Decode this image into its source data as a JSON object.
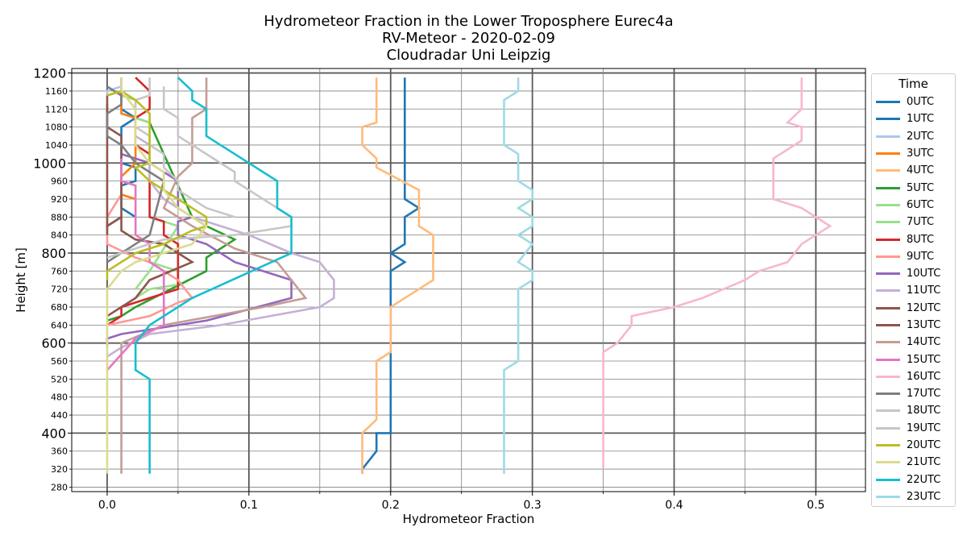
{
  "chart_data": {
    "type": "line",
    "title": [
      "Hydrometeor Fraction in the Lower Troposphere Eurec4a",
      "RV-Meteor - 2020-02-09",
      "Cloudradar Uni Leipzig"
    ],
    "xlabel": "Hydrometeor Fraction",
    "ylabel": "Height [m]",
    "xlim": [
      -0.025,
      0.535
    ],
    "ylim": [
      270,
      1210
    ],
    "x_ticks": [
      "0.0",
      "0.1",
      "0.2",
      "0.3",
      "0.4",
      "0.5"
    ],
    "y_major_ticks": [
      "1200",
      "1000",
      "800",
      "600",
      "400"
    ],
    "y_minor_ticks": [
      "1160",
      "1120",
      "1080",
      "1040",
      "960",
      "920",
      "880",
      "840",
      "760",
      "720",
      "680",
      "640",
      "560",
      "520",
      "480",
      "440",
      "360",
      "320",
      "280"
    ],
    "grid": true,
    "legend_title": "Time",
    "legend_position": "right",
    "series": [
      {
        "name": "0UTC",
        "color": "#1f77b4",
        "x": [
          0.21,
          0.21,
          0.21,
          0.21,
          0.21,
          0.21,
          0.21,
          0.21,
          0.21,
          0.22,
          0.21,
          0.21,
          0.21,
          0.2,
          0.21,
          0.2,
          0.2,
          0.2,
          0.2,
          0.2,
          0.2,
          0.2,
          0.2,
          0.2,
          0.2,
          0.2,
          0.2,
          0.2,
          0.2,
          0.19,
          0.19,
          0.19,
          0.18,
          0.18
        ],
        "y": [
          1190,
          1160,
          1120,
          1080,
          1040,
          1000,
          960,
          940,
          920,
          900,
          880,
          860,
          820,
          800,
          780,
          760,
          740,
          720,
          680,
          640,
          600,
          580,
          560,
          520,
          480,
          470,
          440,
          420,
          400,
          400,
          380,
          360,
          320,
          310
        ]
      },
      {
        "name": "1UTC",
        "color": "#1f77b4",
        "x": [
          0.01,
          0.01,
          0.02,
          0.01,
          0.01,
          0.02,
          0.02,
          0.01,
          0.01,
          0.02
        ],
        "y": [
          1190,
          1120,
          1100,
          1080,
          1000,
          990,
          960,
          950,
          900,
          880
        ]
      },
      {
        "name": "2UTC",
        "color": "#aec7e8",
        "x": [
          0.01,
          0.01,
          0.0,
          0.0
        ],
        "y": [
          1190,
          1170,
          1160,
          1150
        ]
      },
      {
        "name": "3UTC",
        "color": "#ff7f0e",
        "x": [
          0.0,
          0.01,
          0.01,
          0.02,
          0.02,
          0.01,
          0.01,
          0.02
        ],
        "y": [
          1150,
          1160,
          1110,
          1100,
          1000,
          970,
          930,
          920
        ]
      },
      {
        "name": "4UTC",
        "color": "#ffbb78",
        "x": [
          0.19,
          0.19,
          0.19,
          0.19,
          0.18,
          0.18,
          0.19,
          0.19,
          0.22,
          0.22,
          0.23,
          0.23,
          0.2,
          0.2,
          0.2,
          0.19,
          0.19,
          0.19,
          0.18,
          0.18
        ],
        "y": [
          1190,
          1160,
          1120,
          1090,
          1080,
          1040,
          1010,
          990,
          940,
          860,
          840,
          740,
          680,
          600,
          580,
          560,
          480,
          430,
          400,
          310
        ]
      },
      {
        "name": "5UTC",
        "color": "#2ca02c",
        "x": [
          0.02,
          0.02,
          0.03,
          0.06,
          0.07,
          0.09,
          0.07,
          0.07,
          0.02,
          0.01,
          0.0
        ],
        "y": [
          1120,
          1100,
          1090,
          880,
          860,
          830,
          790,
          760,
          680,
          660,
          650
        ]
      },
      {
        "name": "6UTC",
        "color": "#98df8a",
        "x": [
          0.01,
          0.02,
          0.02,
          0.03,
          0.03,
          0.05,
          0.03,
          0.02
        ],
        "y": [
          1150,
          1140,
          1100,
          1090,
          880,
          860,
          760,
          720
        ]
      },
      {
        "name": "7UTC",
        "color": "#98df8a",
        "x": [
          0.03,
          0.03,
          0.05,
          0.05,
          0.03,
          0.02
        ],
        "y": [
          820,
          780,
          760,
          730,
          720,
          700
        ]
      },
      {
        "name": "8UTC",
        "color": "#d62728",
        "x": [
          0.02,
          0.03,
          0.03,
          0.02,
          0.02,
          0.03,
          0.03,
          0.04,
          0.04,
          0.05,
          0.05,
          0.03,
          0.01,
          0.01,
          0.0
        ],
        "y": [
          1190,
          1160,
          1120,
          1100,
          1040,
          1020,
          880,
          870,
          840,
          820,
          720,
          700,
          680,
          660,
          640
        ]
      },
      {
        "name": "9UTC",
        "color": "#ff9896",
        "x": [
          0.01,
          0.01,
          0.0,
          0.0,
          0.02,
          0.03,
          0.04,
          0.05,
          0.06,
          0.05,
          0.03,
          0.0
        ],
        "y": [
          1000,
          930,
          880,
          820,
          790,
          780,
          760,
          740,
          700,
          690,
          660,
          640
        ]
      },
      {
        "name": "10UTC",
        "color": "#9467bd",
        "x": [
          0.01,
          0.03,
          0.05,
          0.05,
          0.06,
          0.05,
          0.05,
          0.07,
          0.09,
          0.13,
          0.13,
          0.07,
          0.01,
          0.0,
          0.0
        ],
        "y": [
          1020,
          1000,
          960,
          900,
          880,
          870,
          840,
          820,
          780,
          740,
          700,
          650,
          620,
          610,
          590
        ]
      },
      {
        "name": "11UTC",
        "color": "#c5b0d5",
        "x": [
          0.02,
          0.03,
          0.03,
          0.04,
          0.06,
          0.1,
          0.13,
          0.15,
          0.16,
          0.16,
          0.15,
          0.08,
          0.03,
          0.01,
          0.0
        ],
        "y": [
          1060,
          1040,
          960,
          920,
          880,
          840,
          800,
          780,
          740,
          700,
          680,
          640,
          620,
          590,
          570
        ]
      },
      {
        "name": "12UTC",
        "color": "#8c564b",
        "x": [
          0.0,
          0.0,
          0.01,
          0.01,
          0.02,
          0.04,
          0.05,
          0.06,
          0.03,
          0.02,
          0.01,
          0.0
        ],
        "y": [
          1150,
          860,
          880,
          850,
          830,
          820,
          800,
          780,
          740,
          700,
          680,
          660
        ]
      },
      {
        "name": "13UTC",
        "color": "#8c564b",
        "x": [
          0.0,
          0.0,
          0.01,
          0.01,
          0.01,
          0.01,
          0.0,
          0.0
        ],
        "y": [
          1130,
          1080,
          1060,
          1020,
          960,
          880,
          860,
          840
        ]
      },
      {
        "name": "14UTC",
        "color": "#c49c94",
        "x": [
          0.07,
          0.07,
          0.06,
          0.06,
          0.06,
          0.05,
          0.04,
          0.06,
          0.09,
          0.12,
          0.14,
          0.11,
          0.04,
          0.01,
          0.01,
          0.01,
          0.01
        ],
        "y": [
          1190,
          1120,
          1100,
          1040,
          1000,
          970,
          900,
          860,
          810,
          780,
          700,
          680,
          640,
          600,
          560,
          320,
          310
        ]
      },
      {
        "name": "15UTC",
        "color": "#e377c2",
        "x": [
          0.01,
          0.01,
          0.02,
          0.02,
          0.02,
          0.03,
          0.03,
          0.04,
          0.04,
          0.04,
          0.02,
          0.0
        ],
        "y": [
          1010,
          960,
          950,
          880,
          840,
          820,
          780,
          760,
          720,
          640,
          610,
          540
        ]
      },
      {
        "name": "16UTC",
        "color": "#f7b6d2",
        "x": [
          0.49,
          0.49,
          0.49,
          0.48,
          0.49,
          0.49,
          0.47,
          0.47,
          0.47,
          0.49,
          0.51,
          0.49,
          0.48,
          0.46,
          0.45,
          0.42,
          0.4,
          0.37,
          0.37,
          0.36,
          0.35,
          0.35,
          0.35
        ],
        "y": [
          1190,
          1160,
          1120,
          1090,
          1080,
          1050,
          1010,
          960,
          920,
          900,
          860,
          820,
          780,
          760,
          740,
          700,
          680,
          660,
          640,
          600,
          580,
          560,
          320
        ]
      },
      {
        "name": "17UTC",
        "color": "#7f7f7f",
        "x": [
          0.0,
          0.01,
          0.01,
          0.0,
          0.0,
          0.0,
          0.01,
          0.02,
          0.03,
          0.04,
          0.03,
          0.0
        ],
        "y": [
          1170,
          1150,
          1130,
          1110,
          1100,
          1060,
          1040,
          1000,
          980,
          960,
          840,
          780
        ]
      },
      {
        "name": "18UTC",
        "color": "#c7c7c7",
        "x": [
          0.04,
          0.04,
          0.05,
          0.05,
          0.06,
          0.07,
          0.09,
          0.09,
          0.1,
          0.13,
          0.13,
          0.09,
          0.04,
          0.03,
          0.01,
          0.0
        ],
        "y": [
          1170,
          1120,
          1100,
          1060,
          1040,
          1020,
          980,
          960,
          940,
          880,
          860,
          840,
          830,
          820,
          800,
          790
        ]
      },
      {
        "name": "19UTC",
        "color": "#c7c7c7",
        "x": [
          0.03,
          0.03,
          0.02,
          0.02,
          0.03,
          0.03,
          0.04,
          0.04,
          0.05,
          0.05,
          0.07,
          0.09
        ],
        "y": [
          1190,
          1150,
          1140,
          1080,
          1060,
          1040,
          1020,
          990,
          960,
          940,
          900,
          880
        ]
      },
      {
        "name": "20UTC",
        "color": "#bcbd22",
        "x": [
          0.0,
          0.01,
          0.02,
          0.03,
          0.03,
          0.03,
          0.02,
          0.03,
          0.05,
          0.07,
          0.07,
          0.06,
          0.04,
          0.02,
          0.0,
          0.0
        ],
        "y": [
          1150,
          1160,
          1140,
          1110,
          1100,
          1000,
          990,
          960,
          920,
          880,
          860,
          850,
          820,
          800,
          760,
          740
        ]
      },
      {
        "name": "21UTC",
        "color": "#dbdb8d",
        "x": [
          0.01,
          0.01,
          0.02,
          0.02,
          0.02,
          0.03,
          0.04,
          0.04,
          0.05,
          0.07,
          0.06,
          0.04,
          0.02,
          0.01,
          0.0,
          0.0,
          0.0
        ],
        "y": [
          1190,
          1160,
          1120,
          1080,
          1040,
          1000,
          980,
          940,
          900,
          860,
          820,
          800,
          780,
          760,
          720,
          600,
          310
        ]
      },
      {
        "name": "22UTC",
        "color": "#17becf",
        "x": [
          0.05,
          0.06,
          0.06,
          0.07,
          0.07,
          0.07,
          0.1,
          0.12,
          0.12,
          0.13,
          0.13,
          0.13,
          0.06,
          0.03,
          0.02,
          0.02,
          0.03,
          0.03
        ],
        "y": [
          1190,
          1160,
          1140,
          1120,
          1080,
          1060,
          1000,
          960,
          900,
          880,
          820,
          800,
          700,
          640,
          600,
          540,
          520,
          310
        ]
      },
      {
        "name": "23UTC",
        "color": "#9edae5",
        "x": [
          0.29,
          0.29,
          0.28,
          0.28,
          0.28,
          0.29,
          0.29,
          0.3,
          0.3,
          0.29,
          0.3,
          0.3,
          0.29,
          0.3,
          0.29,
          0.3,
          0.3,
          0.29,
          0.29,
          0.29,
          0.29,
          0.28,
          0.28
        ],
        "y": [
          1190,
          1160,
          1140,
          1120,
          1040,
          1020,
          960,
          940,
          920,
          900,
          880,
          860,
          840,
          820,
          780,
          760,
          740,
          720,
          600,
          580,
          560,
          540,
          310
        ]
      }
    ]
  }
}
